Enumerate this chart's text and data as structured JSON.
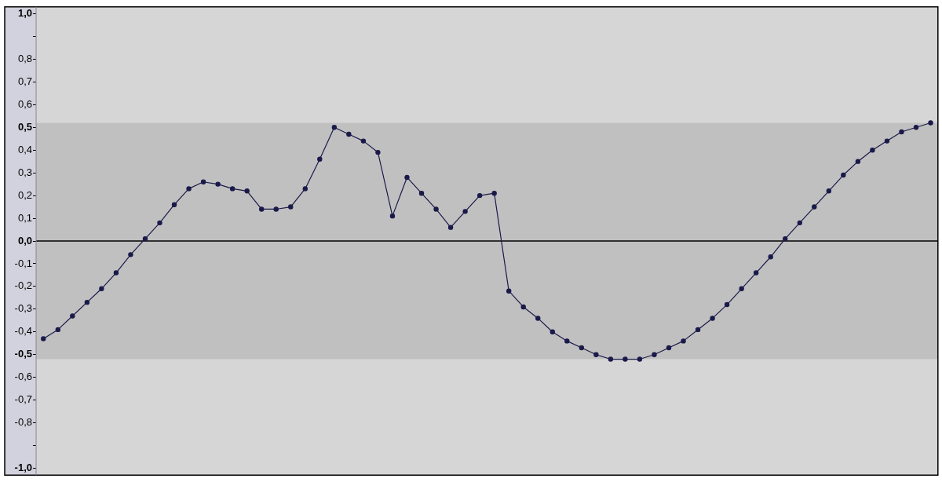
{
  "chart_data": {
    "type": "line",
    "categories": [
      null,
      null,
      null,
      null,
      null,
      null,
      null,
      null,
      null,
      null,
      null,
      null,
      null,
      null,
      null,
      null,
      null,
      null,
      null,
      null,
      null,
      null,
      null,
      null,
      null,
      null,
      null,
      null,
      null,
      null,
      null,
      null,
      null,
      null,
      null,
      null,
      null,
      null,
      null,
      null,
      null,
      null,
      null,
      null,
      null,
      null,
      null,
      null,
      null,
      null,
      null,
      null,
      null,
      null,
      null,
      null,
      null,
      null,
      null,
      null,
      null,
      null
    ],
    "series": [
      {
        "color": "#1a1a4a",
        "values": [
          -0.43,
          -0.39,
          -0.33,
          -0.27,
          -0.21,
          -0.14,
          -0.06,
          0.01,
          0.08,
          0.16,
          0.23,
          0.26,
          0.25,
          0.23,
          0.22,
          0.14,
          0.14,
          0.15,
          0.23,
          0.36,
          0.5,
          0.47,
          0.44,
          0.39,
          0.11,
          0.28,
          0.21,
          0.14,
          0.06,
          0.13,
          0.2,
          0.21,
          -0.22,
          -0.29,
          -0.34,
          -0.4,
          -0.44,
          -0.47,
          -0.5,
          -0.52,
          -0.52,
          -0.52,
          -0.5,
          -0.47,
          -0.44,
          -0.39,
          -0.34,
          -0.28,
          -0.21,
          -0.14,
          -0.07,
          0.01,
          0.08,
          0.15,
          0.22,
          0.29,
          0.35,
          0.4,
          0.44,
          0.48,
          0.5,
          0.52
        ]
      }
    ],
    "ylim": [
      -1.03,
      1.03
    ],
    "yticks": [
      {
        "value": 1,
        "label": "1,0"
      },
      {
        "value": 0.9,
        "label": null
      },
      {
        "value": 0.8,
        "label": "0,8"
      },
      {
        "value": 0.7,
        "label": "0,7"
      },
      {
        "value": 0.6,
        "label": "0,6"
      },
      {
        "value": 0.5,
        "label": "0,5"
      },
      {
        "value": 0.4,
        "label": "0,4"
      },
      {
        "value": 0.3,
        "label": "0,3"
      },
      {
        "value": 0.2,
        "label": "0,2"
      },
      {
        "value": 0.1,
        "label": "0,1"
      },
      {
        "value": 0,
        "label": "0,0"
      },
      {
        "value": -0.1,
        "label": "-0,1"
      },
      {
        "value": -0.2,
        "label": "-0,2"
      },
      {
        "value": -0.3,
        "label": "-0,3"
      },
      {
        "value": -0.4,
        "label": "-0,4"
      },
      {
        "value": -0.5,
        "label": "-0,5"
      },
      {
        "value": -0.6,
        "label": "-0,6"
      },
      {
        "value": -0.7,
        "label": "-0,7"
      },
      {
        "value": -0.8,
        "label": "-0,8"
      },
      {
        "value": -0.9,
        "label": null
      },
      {
        "value": -1,
        "label": "-1,0"
      }
    ],
    "bands": [
      {
        "axis": "y",
        "from": -0.52,
        "to": 0.52,
        "color": "#c0c0c0"
      }
    ],
    "ref_lines": [
      {
        "axis": "y",
        "value": 0,
        "color": "#000000"
      }
    ],
    "tick_labels": "y",
    "marker": "circle",
    "line_style": "solid",
    "grid": false,
    "legend": false
  }
}
